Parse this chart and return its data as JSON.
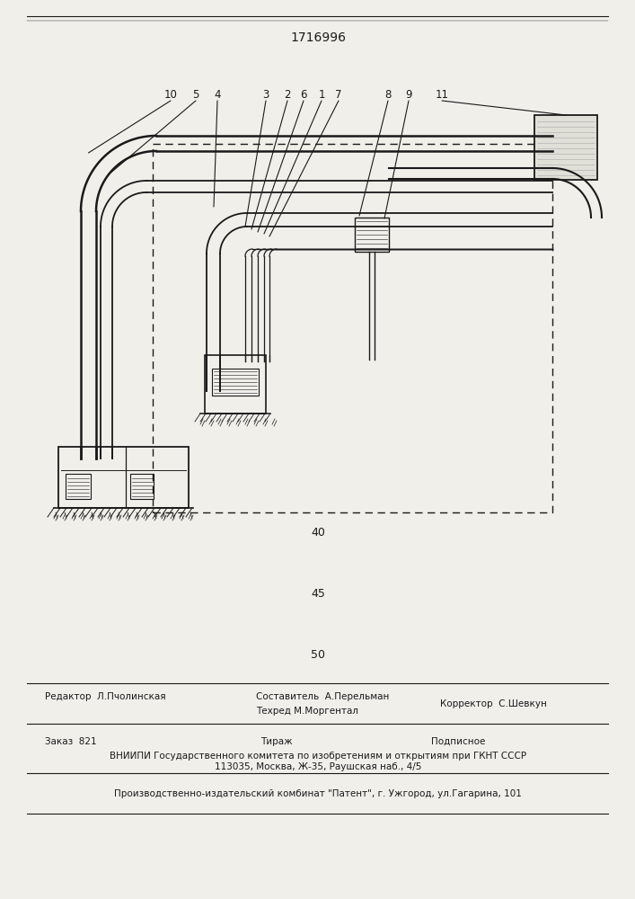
{
  "patent_number": "1716996",
  "num_40": "40",
  "num_45": "45",
  "num_50": "50",
  "labels": [
    "10",
    "5",
    "4",
    "3",
    "2",
    "6",
    "1",
    "7",
    "8",
    "9",
    "11"
  ],
  "editor_line": "Редактор  Л.Пчолинская",
  "composer_line1": "Составитель  А.Перельман",
  "composer_line2": "Техред М.Моргентал",
  "corrector_line": "Корректор  С.Шевкун",
  "order_line": "Заказ  821",
  "tirazh_line": "Тираж",
  "podpisnoe_line": "Подписное",
  "vniiipi_line": "ВНИИПИ Государственного комитета по изобретениям и открытиям при ГКНТ СССР",
  "address_line": "113035, Москва, Ж-35, Раушская наб., 4/5",
  "factory_line": "Производственно-издательский комбинат \"Патент\", г. Ужгород, ул.Гагарина, 101",
  "bg_color": "#f0efea",
  "line_color": "#1a1a1a"
}
